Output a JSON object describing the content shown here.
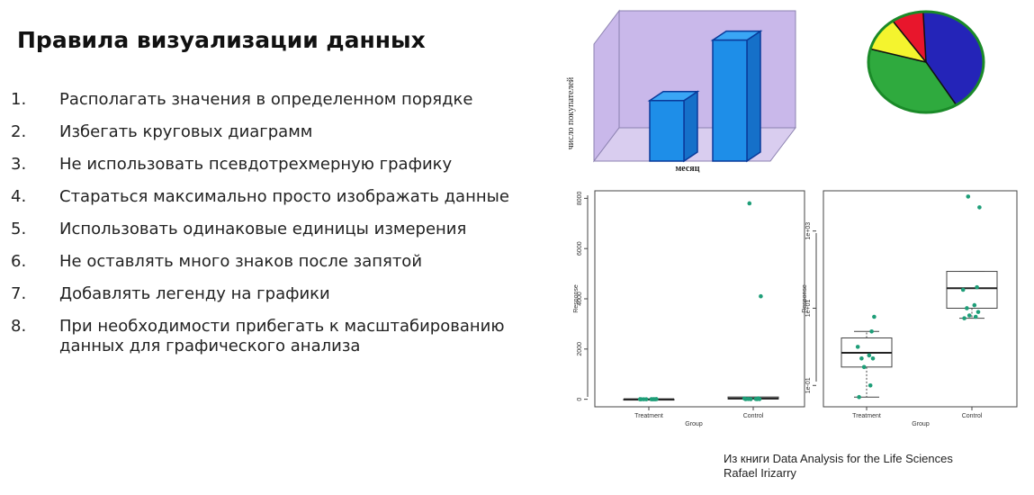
{
  "slide": {
    "title": "Правила визуализации данных",
    "rules": [
      {
        "num": "1.",
        "text": "Располагать значения в определенном порядке"
      },
      {
        "num": "2.",
        "text": "Избегать круговых диаграмм"
      },
      {
        "num": "3.",
        "text": "Не использовать псевдотрехмерную графику"
      },
      {
        "num": "4.",
        "text": "Стараться максимально просто изображать данные"
      },
      {
        "num": "5.",
        "text": "Использовать одинаковые единицы измерения"
      },
      {
        "num": "6.",
        "text": "Не оставлять много знаков после запятой"
      },
      {
        "num": "7.",
        "text": "Добавлять легенду на графики"
      },
      {
        "num": "8.",
        "text": "При необходимости прибегать к масштабированию данных для графического анализа"
      }
    ],
    "citation": {
      "line1": "Из книги Data Analysis for the Life Sciences",
      "line2": "Rafael Irizarry"
    }
  },
  "chart_data": [
    {
      "type": "bar",
      "style": "pseudo-3d",
      "categories": [
        "",
        ""
      ],
      "values": [
        40,
        80
      ],
      "ylim": [
        0,
        100
      ],
      "xlabel": "месяц",
      "ylabel": "число покупателей",
      "colors": {
        "bar": "#1e8ee8",
        "bar_top": "#3aa6f5",
        "bar_side": "#1570c9",
        "wall": "#c9b8ea",
        "floor": "#d9cdef"
      }
    },
    {
      "type": "pie",
      "values": [
        42,
        38,
        11,
        9
      ],
      "colors": [
        "#2424b8",
        "#2faa3e",
        "#f4f42e",
        "#e8162c"
      ]
    },
    {
      "type": "scatter",
      "subtype": "boxplot-with-points",
      "xlabel": "Group",
      "ylabel": "Response",
      "categories": [
        "Treatment",
        "Control"
      ],
      "y_ticks": [
        "0",
        "2000",
        "4000",
        "6000",
        "8000"
      ],
      "ylim": [
        -300,
        8300
      ],
      "box": [
        {
          "q1": 0.3,
          "median": 0.7,
          "q3": 1.7
        },
        {
          "q1": 10,
          "median": 33,
          "q3": 90
        }
      ],
      "series": [
        {
          "values": [
            0.05,
            0.1,
            0.3,
            0.5,
            0.5,
            0.6,
            1.0,
            2.5,
            6
          ]
        },
        {
          "values": [
            5.5,
            6,
            6.5,
            8,
            10,
            12,
            30,
            35,
            4100,
            7800
          ]
        }
      ],
      "grid": false
    },
    {
      "type": "scatter",
      "subtype": "boxplot-with-points",
      "scale": "log",
      "xlabel": "Group",
      "ylabel": "Response",
      "categories": [
        "Treatment",
        "Control"
      ],
      "y_ticks": [
        "1e-01",
        "1e+01",
        "1e+03"
      ],
      "ylim": [
        0.028,
        11000
      ],
      "box": [
        {
          "q1": 0.3,
          "median": 0.7,
          "q3": 1.7,
          "whisker_low": 0.05,
          "whisker_high": 2.5
        },
        {
          "q1": 10,
          "median": 33,
          "q3": 90,
          "whisker_low": 5.5,
          "whisker_high": 90
        }
      ],
      "series": [
        {
          "values": [
            0.05,
            0.1,
            0.3,
            0.5,
            0.5,
            0.6,
            1.0,
            2.5,
            6
          ]
        },
        {
          "values": [
            5.5,
            6,
            6.5,
            8,
            10,
            12,
            30,
            35,
            4100,
            7800
          ]
        }
      ],
      "grid": false
    }
  ]
}
